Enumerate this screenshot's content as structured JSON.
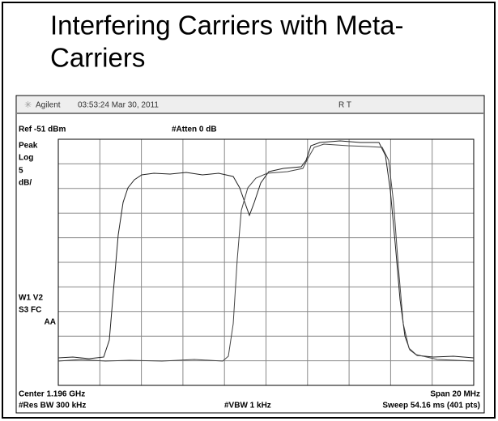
{
  "title": {
    "lines": [
      "Interfering Carriers with Meta-",
      "Carriers"
    ]
  },
  "header": {
    "brand": "Agilent",
    "timestamp": "03:53:24  Mar 30, 2011",
    "flags": "R   T"
  },
  "settings": {
    "ref": "Ref -51 dBm",
    "atten": "#Atten 0 dB",
    "left_labels": [
      "Peak",
      "Log",
      "5",
      "dB/"
    ],
    "marker_labels": [
      "W1 V2",
      "S3  FC",
      "AA"
    ]
  },
  "footer": {
    "center": "Center 1.196 GHz",
    "span": "Span 20 MHz",
    "res_bw": "#Res BW 300 kHz",
    "vbw": "#VBW 1 kHz",
    "sweep": "Sweep 54.16 ms (401 pts)"
  }
}
